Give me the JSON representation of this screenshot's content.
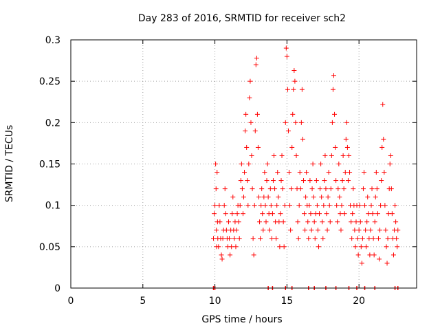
{
  "chart_data": {
    "type": "scatter",
    "title": "Day 283 of 2016, SRMTID for receiver sch2",
    "xlabel": "GPS time / hours",
    "ylabel": "SRMTID / TECUs",
    "xlim": [
      0,
      24
    ],
    "ylim": [
      0,
      0.3
    ],
    "xticks": [
      0,
      5,
      10,
      15,
      20
    ],
    "xtick_labels": [
      "0",
      "5",
      "10",
      "15",
      "20"
    ],
    "yticks": [
      0,
      0.05,
      0.1,
      0.15,
      0.2,
      0.25,
      0.3
    ],
    "ytick_labels": [
      "0",
      "0.05",
      "0.1",
      "0.15",
      "0.2",
      "0.25",
      "0.3"
    ],
    "grid": true,
    "marker": "+",
    "marker_color": "#ff0000",
    "series": [
      {
        "name": "SRMTID",
        "points": [
          [
            9.9,
            0.06
          ],
          [
            9.95,
            0.09
          ],
          [
            10.0,
            0.1
          ],
          [
            10.05,
            0.15
          ],
          [
            10.08,
            0.12
          ],
          [
            10.1,
            0.07
          ],
          [
            10.12,
            0.05
          ],
          [
            10.15,
            0.14
          ],
          [
            10.18,
            0.08
          ],
          [
            10.2,
            0.06
          ],
          [
            10.25,
            0.05
          ],
          [
            10.3,
            0.1
          ],
          [
            10.35,
            0.08
          ],
          [
            10.4,
            0.06
          ],
          [
            10.45,
            0.04
          ],
          [
            10.5,
            0.035
          ],
          [
            10.55,
            0.06
          ],
          [
            10.6,
            0.07
          ],
          [
            10.65,
            0.1
          ],
          [
            10.7,
            0.12
          ],
          [
            10.75,
            0.09
          ],
          [
            10.8,
            0.07
          ],
          [
            10.85,
            0.06
          ],
          [
            10.9,
            0.05
          ],
          [
            10.95,
            0.08
          ],
          [
            11.0,
            0.06
          ],
          [
            11.05,
            0.04
          ],
          [
            11.1,
            0.07
          ],
          [
            11.15,
            0.05
          ],
          [
            11.2,
            0.09
          ],
          [
            11.25,
            0.11
          ],
          [
            11.3,
            0.07
          ],
          [
            11.35,
            0.06
          ],
          [
            11.4,
            0.08
          ],
          [
            11.45,
            0.05
          ],
          [
            11.5,
            0.07
          ],
          [
            11.55,
            0.09
          ],
          [
            11.6,
            0.1
          ],
          [
            11.65,
            0.08
          ],
          [
            11.7,
            0.06
          ],
          [
            11.75,
            0.1
          ],
          [
            11.8,
            0.13
          ],
          [
            11.85,
            0.15
          ],
          [
            11.9,
            0.12
          ],
          [
            11.95,
            0.09
          ],
          [
            12.0,
            0.11
          ],
          [
            12.05,
            0.14
          ],
          [
            12.1,
            0.19
          ],
          [
            12.15,
            0.21
          ],
          [
            12.2,
            0.17
          ],
          [
            12.25,
            0.13
          ],
          [
            12.3,
            0.1
          ],
          [
            12.35,
            0.15
          ],
          [
            12.4,
            0.23
          ],
          [
            12.45,
            0.25
          ],
          [
            12.5,
            0.2
          ],
          [
            12.55,
            0.16
          ],
          [
            12.6,
            0.12
          ],
          [
            12.65,
            0.06
          ],
          [
            12.7,
            0.04
          ],
          [
            12.75,
            0.1
          ],
          [
            12.8,
            0.19
          ],
          [
            12.85,
            0.27
          ],
          [
            12.9,
            0.278
          ],
          [
            12.95,
            0.21
          ],
          [
            13.0,
            0.17
          ],
          [
            13.05,
            0.11
          ],
          [
            13.1,
            0.08
          ],
          [
            13.15,
            0.06
          ],
          [
            13.2,
            0.1
          ],
          [
            13.25,
            0.12
          ],
          [
            13.3,
            0.09
          ],
          [
            13.35,
            0.07
          ],
          [
            13.4,
            0.11
          ],
          [
            13.45,
            0.14
          ],
          [
            13.5,
            0.1
          ],
          [
            13.55,
            0.08
          ],
          [
            13.6,
            0.13
          ],
          [
            13.65,
            0.15
          ],
          [
            13.7,
            0.11
          ],
          [
            13.75,
            0.09
          ],
          [
            13.8,
            0.07
          ],
          [
            13.85,
            0.12
          ],
          [
            13.9,
            0.1
          ],
          [
            13.95,
            0.06
          ],
          [
            14.0,
            0.09
          ],
          [
            14.05,
            0.13
          ],
          [
            14.1,
            0.16
          ],
          [
            14.15,
            0.12
          ],
          [
            14.2,
            0.08
          ],
          [
            14.25,
            0.06
          ],
          [
            14.3,
            0.1
          ],
          [
            14.35,
            0.14
          ],
          [
            14.4,
            0.11
          ],
          [
            14.45,
            0.08
          ],
          [
            14.5,
            0.05
          ],
          [
            14.55,
            0.09
          ],
          [
            14.6,
            0.13
          ],
          [
            14.65,
            0.16
          ],
          [
            14.7,
            0.12
          ],
          [
            14.75,
            0.08
          ],
          [
            14.8,
            0.05
          ],
          [
            14.85,
            0.1
          ],
          [
            14.9,
            0.2
          ],
          [
            14.95,
            0.29
          ],
          [
            15.0,
            0.28
          ],
          [
            15.05,
            0.24
          ],
          [
            15.1,
            0.19
          ],
          [
            15.15,
            0.14
          ],
          [
            15.2,
            0.1
          ],
          [
            15.25,
            0.07
          ],
          [
            15.3,
            0.12
          ],
          [
            15.35,
            0.17
          ],
          [
            15.4,
            0.21
          ],
          [
            15.45,
            0.24
          ],
          [
            15.5,
            0.263
          ],
          [
            15.55,
            0.25
          ],
          [
            15.6,
            0.2
          ],
          [
            15.65,
            0.16
          ],
          [
            15.7,
            0.12
          ],
          [
            15.75,
            0.08
          ],
          [
            15.8,
            0.06
          ],
          [
            15.85,
            0.1
          ],
          [
            15.9,
            0.14
          ],
          [
            15.95,
            0.12
          ],
          [
            16.0,
            0.2
          ],
          [
            16.05,
            0.24
          ],
          [
            16.1,
            0.18
          ],
          [
            16.15,
            0.13
          ],
          [
            16.2,
            0.09
          ],
          [
            16.25,
            0.07
          ],
          [
            16.3,
            0.11
          ],
          [
            16.35,
            0.14
          ],
          [
            16.4,
            0.1
          ],
          [
            16.45,
            0.08
          ],
          [
            16.5,
            0.06
          ],
          [
            16.55,
            0.1
          ],
          [
            16.6,
            0.13
          ],
          [
            16.65,
            0.09
          ],
          [
            16.7,
            0.07
          ],
          [
            16.75,
            0.12
          ],
          [
            16.8,
            0.15
          ],
          [
            16.85,
            0.11
          ],
          [
            16.9,
            0.08
          ],
          [
            16.95,
            0.06
          ],
          [
            17.0,
            0.09
          ],
          [
            17.05,
            0.13
          ],
          [
            17.1,
            0.1
          ],
          [
            17.15,
            0.07
          ],
          [
            17.2,
            0.05
          ],
          [
            17.25,
            0.09
          ],
          [
            17.3,
            0.12
          ],
          [
            17.35,
            0.15
          ],
          [
            17.4,
            0.11
          ],
          [
            17.45,
            0.08
          ],
          [
            17.5,
            0.06
          ],
          [
            17.55,
            0.1
          ],
          [
            17.6,
            0.13
          ],
          [
            17.65,
            0.16
          ],
          [
            17.7,
            0.12
          ],
          [
            17.75,
            0.09
          ],
          [
            17.8,
            0.07
          ],
          [
            17.85,
            0.11
          ],
          [
            17.9,
            0.14
          ],
          [
            17.95,
            0.1
          ],
          [
            18.0,
            0.08
          ],
          [
            18.05,
            0.12
          ],
          [
            18.1,
            0.16
          ],
          [
            18.15,
            0.2
          ],
          [
            18.2,
            0.24
          ],
          [
            18.25,
            0.257
          ],
          [
            18.3,
            0.21
          ],
          [
            18.35,
            0.17
          ],
          [
            18.4,
            0.13
          ],
          [
            18.45,
            0.1
          ],
          [
            18.5,
            0.08
          ],
          [
            18.55,
            0.12
          ],
          [
            18.6,
            0.15
          ],
          [
            18.65,
            0.11
          ],
          [
            18.7,
            0.09
          ],
          [
            18.75,
            0.07
          ],
          [
            18.8,
            0.1
          ],
          [
            18.85,
            0.13
          ],
          [
            18.9,
            0.16
          ],
          [
            18.95,
            0.12
          ],
          [
            19.0,
            0.09
          ],
          [
            19.05,
            0.14
          ],
          [
            19.1,
            0.18
          ],
          [
            19.15,
            0.2
          ],
          [
            19.2,
            0.17
          ],
          [
            19.25,
            0.13
          ],
          [
            19.3,
            0.16
          ],
          [
            19.35,
            0.14
          ],
          [
            19.4,
            0.1
          ],
          [
            19.45,
            0.08
          ],
          [
            19.5,
            0.06
          ],
          [
            19.55,
            0.09
          ],
          [
            19.6,
            0.12
          ],
          [
            19.65,
            0.1
          ],
          [
            19.7,
            0.07
          ],
          [
            19.75,
            0.05
          ],
          [
            19.8,
            0.08
          ],
          [
            19.85,
            0.1
          ],
          [
            19.9,
            0.06
          ],
          [
            19.95,
            0.04
          ],
          [
            20.0,
            0.07
          ],
          [
            20.05,
            0.1
          ],
          [
            20.1,
            0.08
          ],
          [
            20.15,
            0.05
          ],
          [
            20.2,
            0.03
          ],
          [
            20.25,
            0.06
          ],
          [
            20.3,
            0.12
          ],
          [
            20.35,
            0.14
          ],
          [
            20.4,
            0.1
          ],
          [
            20.45,
            0.07
          ],
          [
            20.5,
            0.05
          ],
          [
            20.55,
            0.08
          ],
          [
            20.6,
            0.11
          ],
          [
            20.65,
            0.09
          ],
          [
            20.7,
            0.06
          ],
          [
            20.75,
            0.04
          ],
          [
            20.8,
            0.07
          ],
          [
            20.85,
            0.1
          ],
          [
            20.9,
            0.12
          ],
          [
            20.95,
            0.09
          ],
          [
            21.0,
            0.06
          ],
          [
            21.05,
            0.04
          ],
          [
            21.1,
            0.08
          ],
          [
            21.15,
            0.11
          ],
          [
            21.2,
            0.14
          ],
          [
            21.25,
            0.12
          ],
          [
            21.3,
            0.09
          ],
          [
            21.35,
            0.06
          ],
          [
            21.4,
            0.035
          ],
          [
            21.45,
            0.07
          ],
          [
            21.5,
            0.1
          ],
          [
            21.55,
            0.13
          ],
          [
            21.6,
            0.17
          ],
          [
            21.65,
            0.222
          ],
          [
            21.7,
            0.18
          ],
          [
            21.75,
            0.14
          ],
          [
            21.8,
            0.1
          ],
          [
            21.85,
            0.07
          ],
          [
            21.9,
            0.05
          ],
          [
            21.95,
            0.03
          ],
          [
            22.0,
            0.06
          ],
          [
            22.05,
            0.09
          ],
          [
            22.1,
            0.12
          ],
          [
            22.15,
            0.15
          ],
          [
            22.2,
            0.16
          ],
          [
            22.25,
            0.12
          ],
          [
            22.3,
            0.09
          ],
          [
            22.35,
            0.06
          ],
          [
            22.4,
            0.04
          ],
          [
            22.45,
            0.07
          ],
          [
            22.5,
            0.1
          ],
          [
            22.55,
            0.08
          ],
          [
            22.6,
            0.06
          ],
          [
            22.65,
            0.05
          ],
          [
            22.7,
            0.07
          ]
        ]
      }
    ],
    "zero_markers_x": [
      9.9,
      10.0,
      13.7,
      14.0,
      14.9,
      15.35,
      16.5,
      16.9,
      17.7,
      18.4,
      19.3,
      19.85,
      20.4,
      21.1,
      22.5,
      22.7
    ]
  }
}
